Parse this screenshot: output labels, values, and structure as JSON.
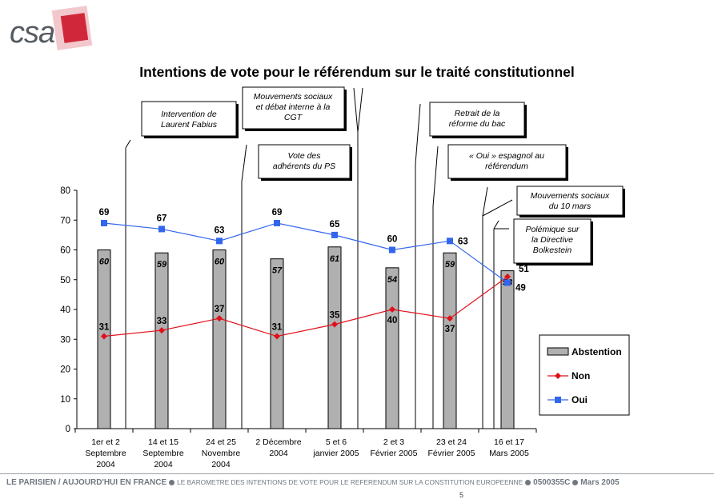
{
  "logo": {
    "text": "csa"
  },
  "chart_data": {
    "type": "bar",
    "title": "Intentions de vote pour le référendum sur le traité constitutionnel",
    "categories": [
      [
        "1er et 2",
        "Septembre",
        "2004"
      ],
      [
        "14 et 15",
        "Septembre",
        "2004"
      ],
      [
        "24 et 25",
        "Novembre",
        "2004"
      ],
      [
        "2 Décembre",
        "2004"
      ],
      [
        "5 et 6",
        "janvier 2005"
      ],
      [
        "2 et 3",
        "Février 2005"
      ],
      [
        "23 et 24",
        "Février 2005"
      ],
      [
        "16 et 17",
        "Mars 2005"
      ]
    ],
    "ylim": [
      0,
      80
    ],
    "yticks": [
      0,
      10,
      20,
      30,
      40,
      50,
      60,
      70,
      80
    ],
    "series": [
      {
        "name": "Abstention",
        "kind": "bar",
        "color": "#b0b0b0",
        "values": [
          60,
          59,
          60,
          57,
          61,
          54,
          59,
          53
        ]
      },
      {
        "name": "Non",
        "kind": "line",
        "color": "#e0101a",
        "values": [
          31,
          33,
          37,
          31,
          35,
          40,
          37,
          51
        ]
      },
      {
        "name": "Oui",
        "kind": "line",
        "color": "#3366ee",
        "values": [
          69,
          67,
          63,
          69,
          65,
          60,
          63,
          49
        ]
      }
    ],
    "legend_position": "right",
    "annotations": [
      {
        "lines": [
          "Intervention de",
          "Laurent Fabius"
        ]
      },
      {
        "lines": [
          "Mouvements sociaux",
          "et débat interne à la",
          "CGT"
        ]
      },
      {
        "lines": [
          "Vote des",
          "adhérents du PS"
        ]
      },
      {
        "lines": [
          "Retrait de la",
          "réforme du bac"
        ]
      },
      {
        "lines": [
          "« Oui » espagnol au",
          "référendum"
        ]
      },
      {
        "lines": [
          "Mouvements sociaux",
          "du 10 mars"
        ]
      },
      {
        "lines": [
          "Polémique sur",
          "la Directive",
          "Bolkestein"
        ]
      }
    ]
  },
  "footer": {
    "source": "LE PARISIEN / AUJOURD'HUI EN FRANCE",
    "description": "LE BAROMETRE DES INTENTIONS DE VOTE POUR LE REFERENDUM SUR LA CONSTITUTION EUROPEENNE",
    "code": "0500355C",
    "date": "Mars 2005"
  },
  "page_number": "5"
}
